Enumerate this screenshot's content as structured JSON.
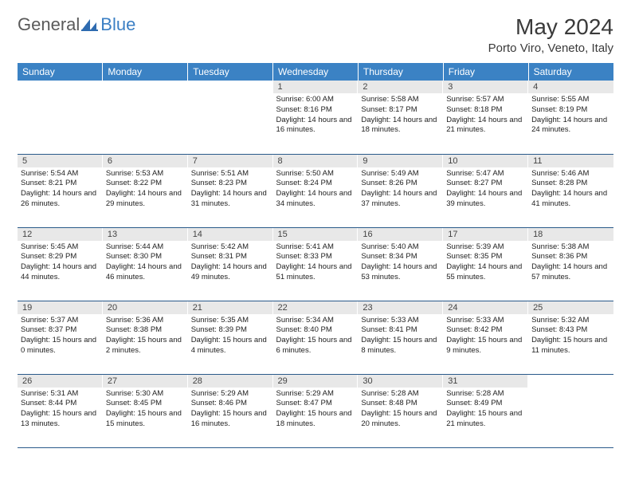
{
  "logo": {
    "general": "General",
    "blue": "Blue"
  },
  "title": "May 2024",
  "location": "Porto Viro, Veneto, Italy",
  "colors": {
    "header_bg": "#3b82c4",
    "header_text": "#ffffff",
    "daynum_bg": "#e8e8e8",
    "divider": "#2a5a8a",
    "logo_gray": "#5a5a5a",
    "logo_blue": "#3b7fc4"
  },
  "weekdays": [
    "Sunday",
    "Monday",
    "Tuesday",
    "Wednesday",
    "Thursday",
    "Friday",
    "Saturday"
  ],
  "cells": [
    {
      "n": "",
      "t": ""
    },
    {
      "n": "",
      "t": ""
    },
    {
      "n": "",
      "t": ""
    },
    {
      "n": "1",
      "sr": "6:00 AM",
      "ss": "8:16 PM",
      "dl": "14 hours and 16 minutes."
    },
    {
      "n": "2",
      "sr": "5:58 AM",
      "ss": "8:17 PM",
      "dl": "14 hours and 18 minutes."
    },
    {
      "n": "3",
      "sr": "5:57 AM",
      "ss": "8:18 PM",
      "dl": "14 hours and 21 minutes."
    },
    {
      "n": "4",
      "sr": "5:55 AM",
      "ss": "8:19 PM",
      "dl": "14 hours and 24 minutes."
    },
    {
      "n": "5",
      "sr": "5:54 AM",
      "ss": "8:21 PM",
      "dl": "14 hours and 26 minutes."
    },
    {
      "n": "6",
      "sr": "5:53 AM",
      "ss": "8:22 PM",
      "dl": "14 hours and 29 minutes."
    },
    {
      "n": "7",
      "sr": "5:51 AM",
      "ss": "8:23 PM",
      "dl": "14 hours and 31 minutes."
    },
    {
      "n": "8",
      "sr": "5:50 AM",
      "ss": "8:24 PM",
      "dl": "14 hours and 34 minutes."
    },
    {
      "n": "9",
      "sr": "5:49 AM",
      "ss": "8:26 PM",
      "dl": "14 hours and 37 minutes."
    },
    {
      "n": "10",
      "sr": "5:47 AM",
      "ss": "8:27 PM",
      "dl": "14 hours and 39 minutes."
    },
    {
      "n": "11",
      "sr": "5:46 AM",
      "ss": "8:28 PM",
      "dl": "14 hours and 41 minutes."
    },
    {
      "n": "12",
      "sr": "5:45 AM",
      "ss": "8:29 PM",
      "dl": "14 hours and 44 minutes."
    },
    {
      "n": "13",
      "sr": "5:44 AM",
      "ss": "8:30 PM",
      "dl": "14 hours and 46 minutes."
    },
    {
      "n": "14",
      "sr": "5:42 AM",
      "ss": "8:31 PM",
      "dl": "14 hours and 49 minutes."
    },
    {
      "n": "15",
      "sr": "5:41 AM",
      "ss": "8:33 PM",
      "dl": "14 hours and 51 minutes."
    },
    {
      "n": "16",
      "sr": "5:40 AM",
      "ss": "8:34 PM",
      "dl": "14 hours and 53 minutes."
    },
    {
      "n": "17",
      "sr": "5:39 AM",
      "ss": "8:35 PM",
      "dl": "14 hours and 55 minutes."
    },
    {
      "n": "18",
      "sr": "5:38 AM",
      "ss": "8:36 PM",
      "dl": "14 hours and 57 minutes."
    },
    {
      "n": "19",
      "sr": "5:37 AM",
      "ss": "8:37 PM",
      "dl": "15 hours and 0 minutes."
    },
    {
      "n": "20",
      "sr": "5:36 AM",
      "ss": "8:38 PM",
      "dl": "15 hours and 2 minutes."
    },
    {
      "n": "21",
      "sr": "5:35 AM",
      "ss": "8:39 PM",
      "dl": "15 hours and 4 minutes."
    },
    {
      "n": "22",
      "sr": "5:34 AM",
      "ss": "8:40 PM",
      "dl": "15 hours and 6 minutes."
    },
    {
      "n": "23",
      "sr": "5:33 AM",
      "ss": "8:41 PM",
      "dl": "15 hours and 8 minutes."
    },
    {
      "n": "24",
      "sr": "5:33 AM",
      "ss": "8:42 PM",
      "dl": "15 hours and 9 minutes."
    },
    {
      "n": "25",
      "sr": "5:32 AM",
      "ss": "8:43 PM",
      "dl": "15 hours and 11 minutes."
    },
    {
      "n": "26",
      "sr": "5:31 AM",
      "ss": "8:44 PM",
      "dl": "15 hours and 13 minutes."
    },
    {
      "n": "27",
      "sr": "5:30 AM",
      "ss": "8:45 PM",
      "dl": "15 hours and 15 minutes."
    },
    {
      "n": "28",
      "sr": "5:29 AM",
      "ss": "8:46 PM",
      "dl": "15 hours and 16 minutes."
    },
    {
      "n": "29",
      "sr": "5:29 AM",
      "ss": "8:47 PM",
      "dl": "15 hours and 18 minutes."
    },
    {
      "n": "30",
      "sr": "5:28 AM",
      "ss": "8:48 PM",
      "dl": "15 hours and 20 minutes."
    },
    {
      "n": "31",
      "sr": "5:28 AM",
      "ss": "8:49 PM",
      "dl": "15 hours and 21 minutes."
    },
    {
      "n": "",
      "t": ""
    }
  ],
  "labels": {
    "sunrise": "Sunrise:",
    "sunset": "Sunset:",
    "daylight": "Daylight:"
  }
}
